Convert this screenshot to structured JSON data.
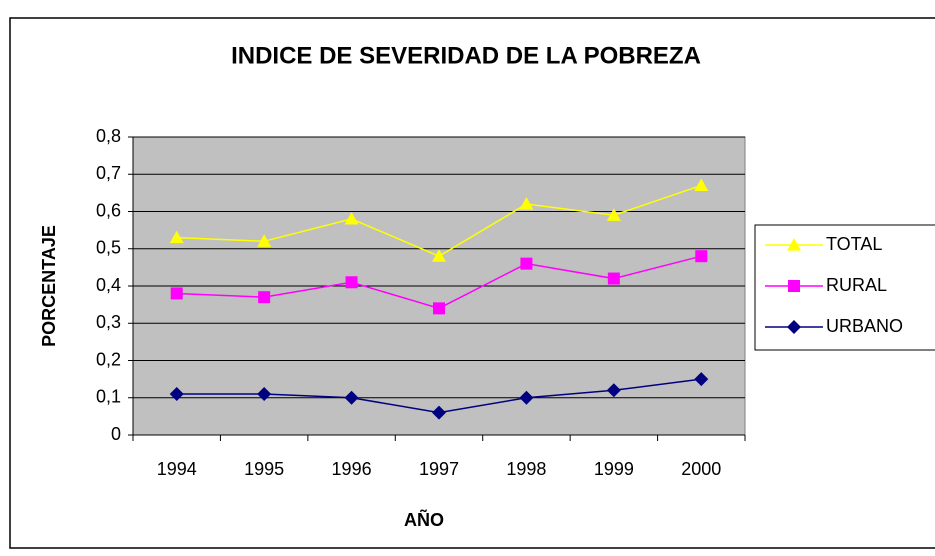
{
  "chart_data": {
    "type": "line",
    "title": "INDICE DE SEVERIDAD DE LA POBREZA",
    "x_label": "AÑO",
    "y_label": "PORCENTAJE",
    "categories": [
      "1994",
      "1995",
      "1996",
      "1997",
      "1998",
      "1999",
      "2000"
    ],
    "series": [
      {
        "name": "TOTAL",
        "color": "#ffff00",
        "marker": "triangle",
        "values": [
          0.53,
          0.52,
          0.58,
          0.48,
          0.62,
          0.59,
          0.67
        ]
      },
      {
        "name": "RURAL",
        "color": "#ff00ff",
        "marker": "square",
        "values": [
          0.38,
          0.37,
          0.41,
          0.34,
          0.46,
          0.42,
          0.48
        ]
      },
      {
        "name": "URBANO",
        "color": "#000080",
        "marker": "diamond",
        "values": [
          0.11,
          0.11,
          0.1,
          0.06,
          0.1,
          0.12,
          0.15
        ]
      }
    ],
    "ylim": [
      0,
      0.8
    ],
    "yticks": [
      0,
      {
        "value": 0.1,
        "label": "0,1"
      },
      {
        "value": 0.2,
        "label": "0,2"
      },
      {
        "value": 0.3,
        "label": "0,3"
      },
      {
        "value": 0.4,
        "label": "0,4"
      },
      {
        "value": 0.5,
        "label": "0,5"
      },
      {
        "value": 0.6,
        "label": "0,6"
      },
      {
        "value": 0.7,
        "label": "0,7"
      },
      {
        "value": 0.8,
        "label": "0,8"
      }
    ],
    "grid": true,
    "legend": "right",
    "plot_background": "#c0c0c0"
  }
}
